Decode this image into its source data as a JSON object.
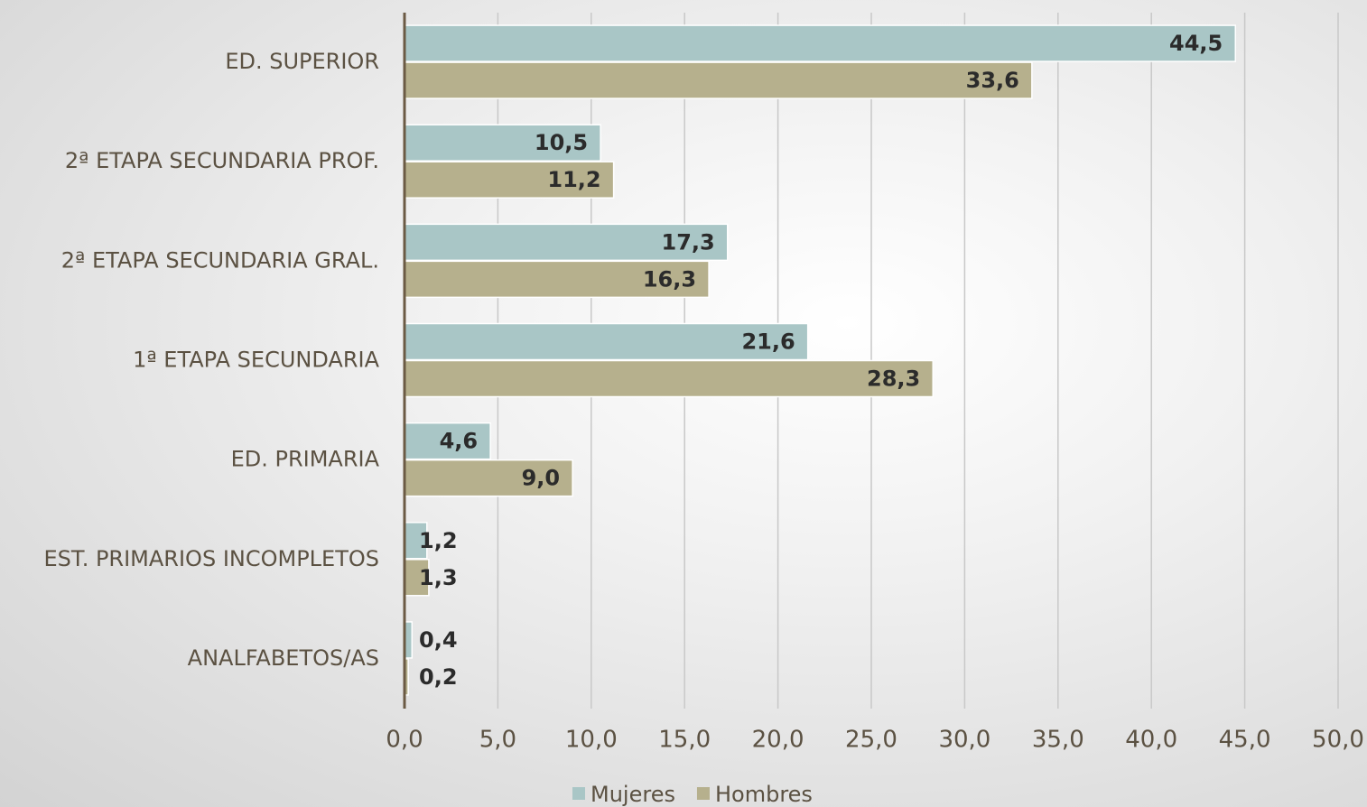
{
  "chart_data": {
    "type": "bar",
    "orientation": "horizontal",
    "categories": [
      "ED. SUPERIOR",
      "2ª ETAPA SECUNDARIA PROF.",
      "2ª ETAPA SECUNDARIA GRAL.",
      "1ª ETAPA SECUNDARIA",
      "ED. PRIMARIA",
      "EST. PRIMARIOS INCOMPLETOS",
      "ANALFABETOS/AS"
    ],
    "series": [
      {
        "name": "Mujeres",
        "color": "#a9c6c6",
        "values": [
          44.5,
          10.5,
          17.3,
          21.6,
          4.6,
          1.2,
          0.4
        ],
        "value_labels": [
          "44,5",
          "10,5",
          "17,3",
          "21,6",
          "4,6",
          "1,2",
          "0,4"
        ]
      },
      {
        "name": "Hombres",
        "color": "#b6b08d",
        "values": [
          33.6,
          11.2,
          16.3,
          28.3,
          9.0,
          1.3,
          0.2
        ],
        "value_labels": [
          "33,6",
          "11,2",
          "16,3",
          "28,3",
          "9,0",
          "1,3",
          "0,2"
        ]
      }
    ],
    "xlim": [
      0,
      50
    ],
    "xticks": [
      {
        "value": 0,
        "label": "0,0"
      },
      {
        "value": 5,
        "label": "5,0"
      },
      {
        "value": 10,
        "label": "10,0"
      },
      {
        "value": 15,
        "label": "15,0"
      },
      {
        "value": 20,
        "label": "20,0"
      },
      {
        "value": 25,
        "label": "25,0"
      },
      {
        "value": 30,
        "label": "30,0"
      },
      {
        "value": 35,
        "label": "35,0"
      },
      {
        "value": 40,
        "label": "40,0"
      },
      {
        "value": 45,
        "label": "45,0"
      },
      {
        "value": 50,
        "label": "50,0"
      }
    ],
    "grid": true,
    "legend": "bottom"
  }
}
